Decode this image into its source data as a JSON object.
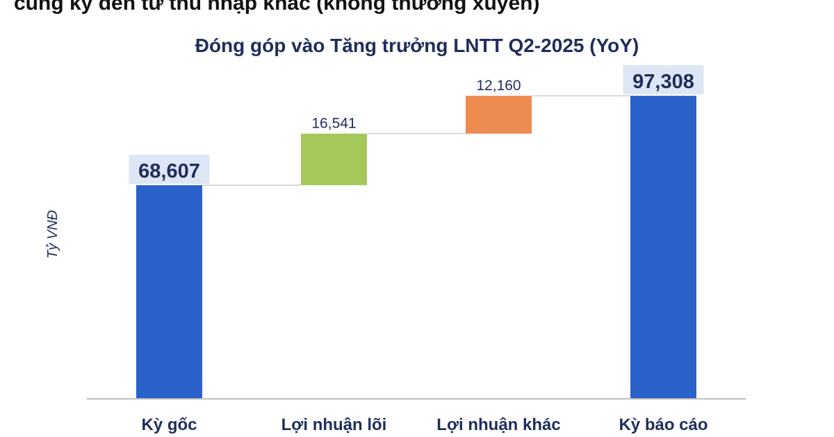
{
  "heading_fragment": "cùng kỳ đến từ thu nhập khác (không thường xuyên)",
  "chart_data": {
    "type": "bar",
    "subtype": "waterfall",
    "title": "Đóng góp vào Tăng trưởng LNTT Q2-2025 (YoY)",
    "ylabel": "Tỷ VNĐ",
    "xlabel": "",
    "categories": [
      "Kỳ gốc",
      "Lợi nhuận lõi",
      "Lợi nhuận khác",
      "Kỳ báo cáo"
    ],
    "values": [
      68607,
      16541,
      12160,
      97308
    ],
    "value_labels": [
      "68,607",
      "16,541",
      "12,160",
      "97,308"
    ],
    "kinds": [
      "total",
      "increase",
      "increase",
      "total"
    ],
    "ylim": [
      0,
      100000
    ],
    "grid": false,
    "legend": "none",
    "colors": {
      "total": "#2a62c9",
      "core_profit": "#a4c95a",
      "other_profit": "#ee8b53",
      "connector": "#d9d9d9",
      "axis": "#bfbfbf",
      "label_highlight": "#dde6f4",
      "text": "#1f2d5c"
    }
  }
}
